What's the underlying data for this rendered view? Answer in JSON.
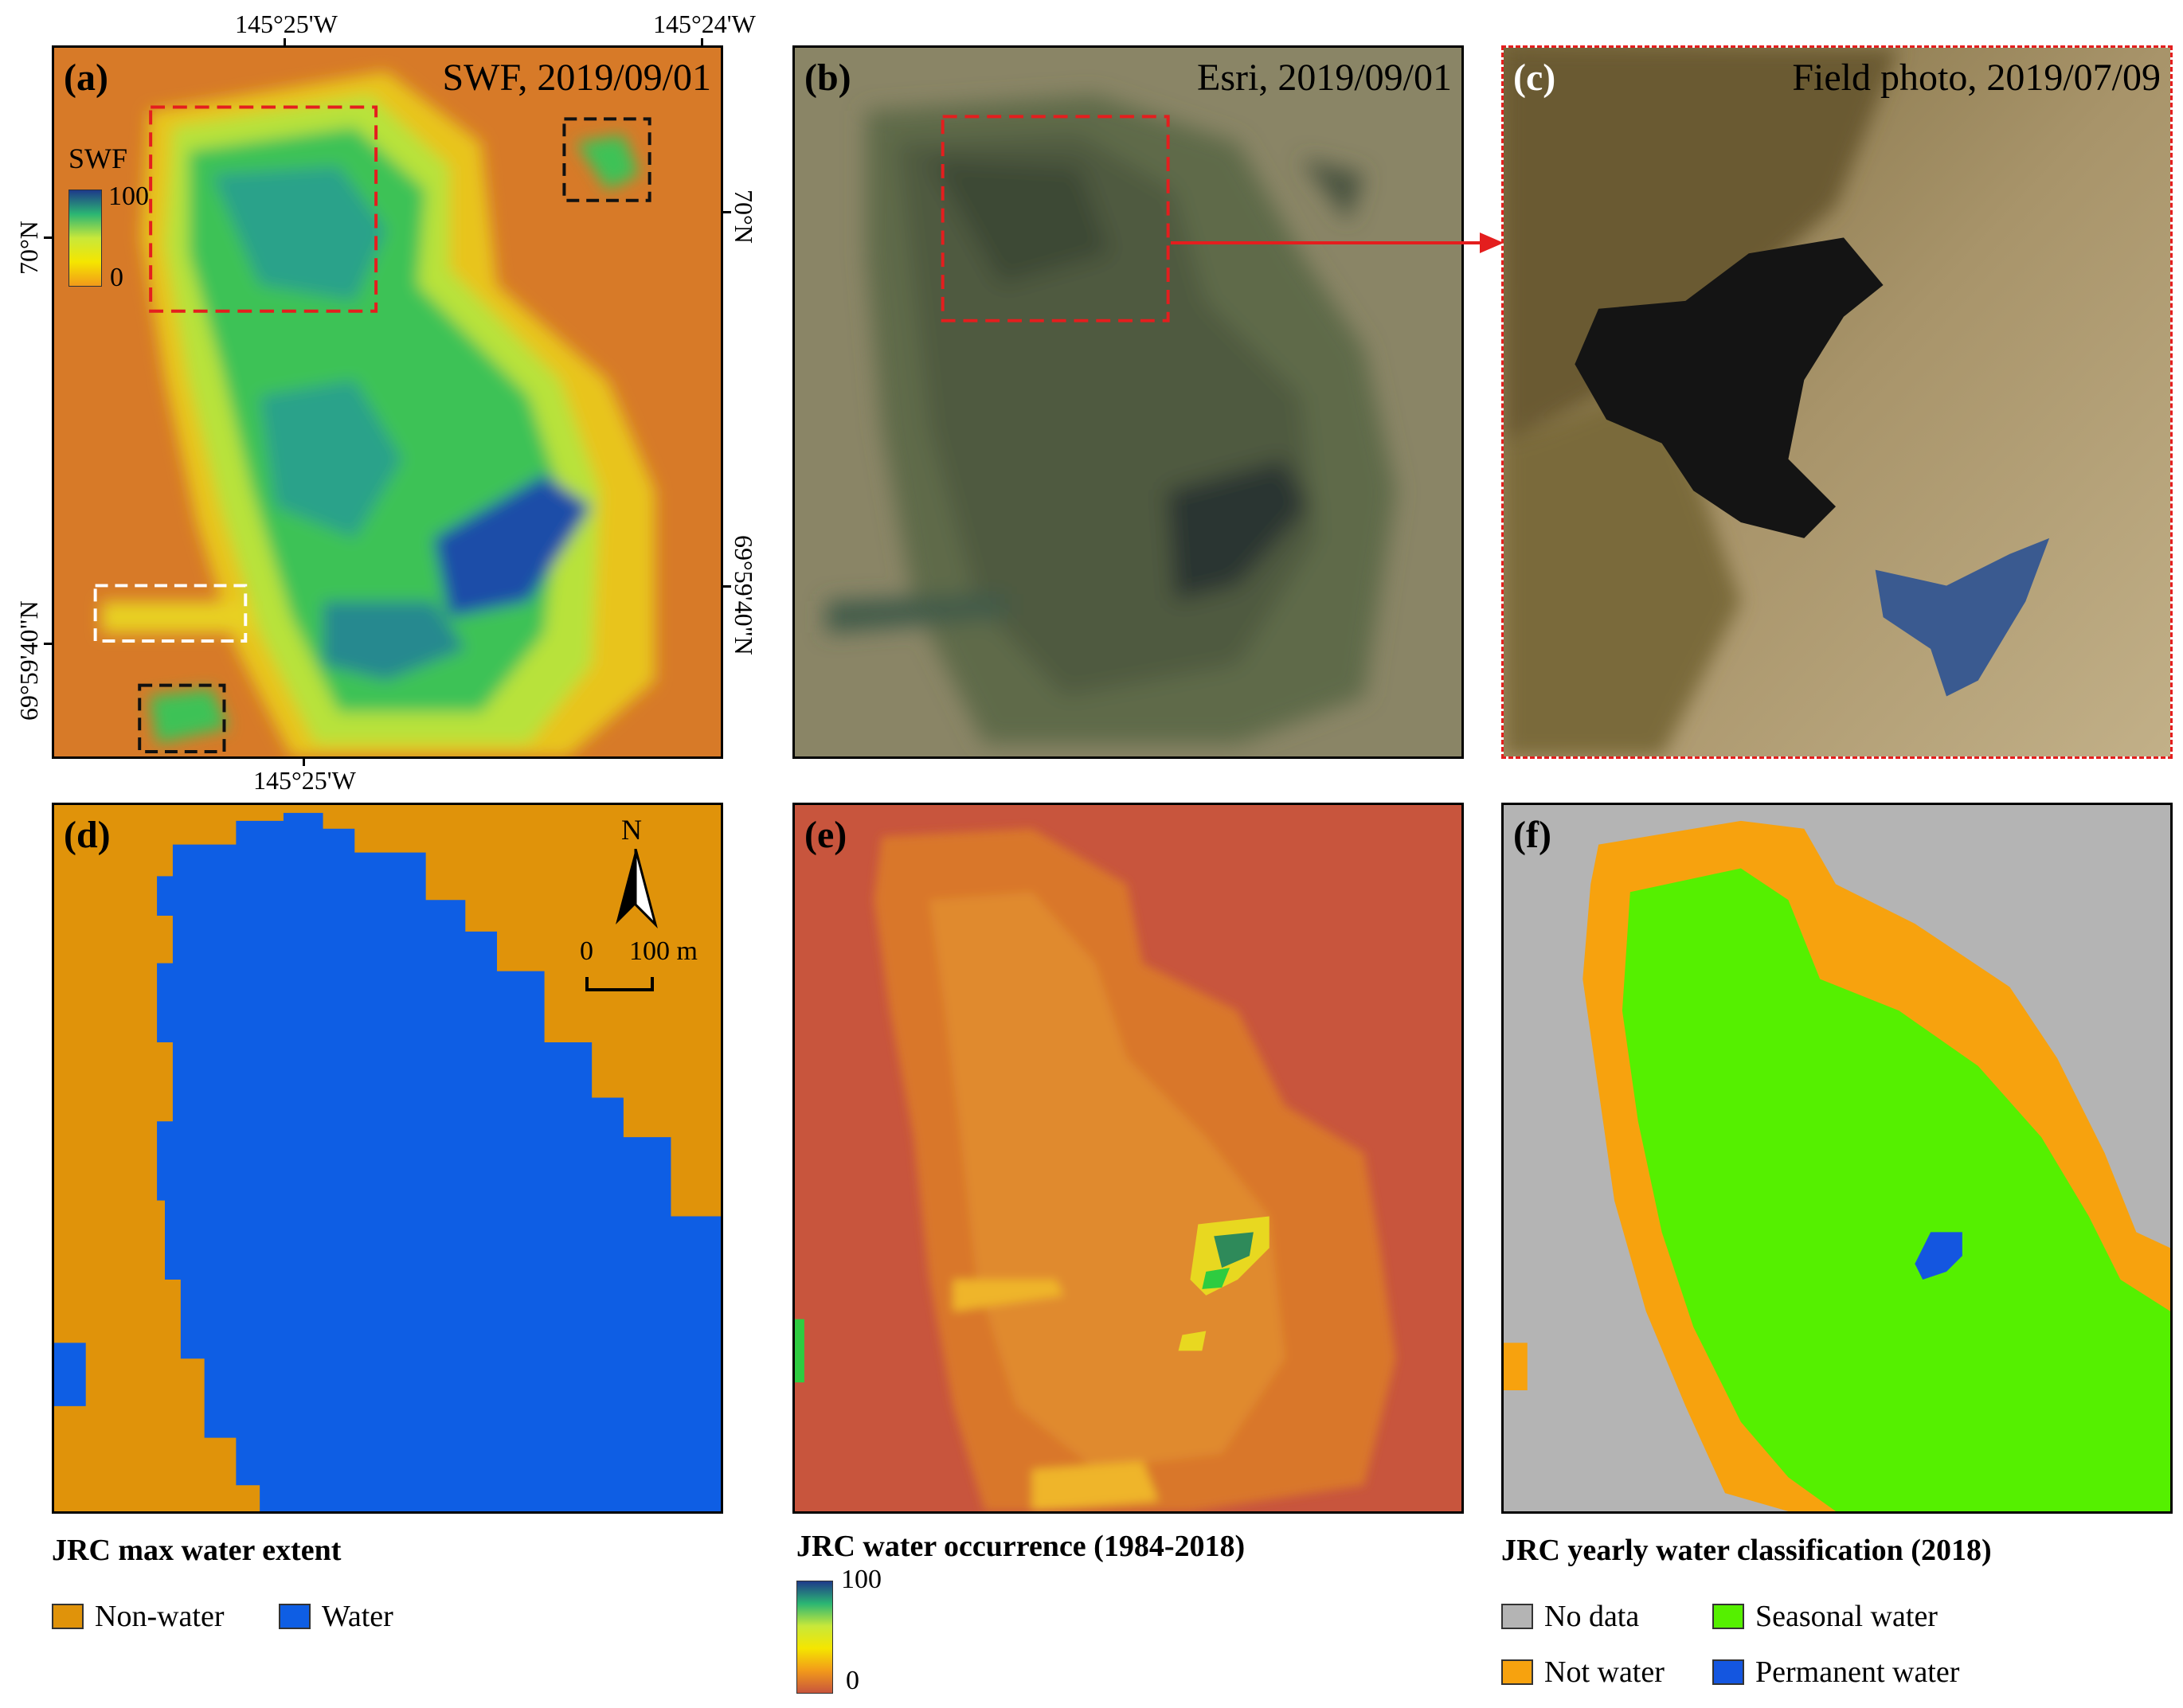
{
  "coords": {
    "top_left": "145°25'W",
    "top_right": "145°24'W",
    "bottom": "145°25'W",
    "left_upper": "70°N",
    "left_lower": "69°59'40\"N",
    "right_upper": "70°N",
    "right_lower": "69°59'40\"N"
  },
  "panels": {
    "a": {
      "label": "(a)",
      "title": "SWF, 2019/09/01",
      "cbar_title": "SWF",
      "cbar_max": "100",
      "cbar_min": "0"
    },
    "b": {
      "label": "(b)",
      "title": "Esri, 2019/09/01"
    },
    "c": {
      "label": "(c)",
      "title": "Field photo, 2019/07/09"
    },
    "d": {
      "label": "(d)",
      "north": "N",
      "scale_0": "0",
      "scale_100": "100 m"
    },
    "e": {
      "label": "(e)"
    },
    "f": {
      "label": "(f)"
    }
  },
  "legends": {
    "d": {
      "title": "JRC max water extent",
      "items": [
        {
          "label": "Non-water",
          "color": "#e0930a"
        },
        {
          "label": "Water",
          "color": "#0e5ee4"
        }
      ]
    },
    "e": {
      "title": "JRC water occurrence (1984-2018)",
      "max": "100",
      "min": "0"
    },
    "f": {
      "title": "JRC yearly water classification (2018)",
      "items": [
        {
          "label": "No data",
          "color": "#b4b4b4"
        },
        {
          "label": "Seasonal water",
          "color": "#55f000"
        },
        {
          "label": "Not water",
          "color": "#f7a20e"
        },
        {
          "label": "Permanent water",
          "color": "#1456e0"
        }
      ]
    }
  },
  "colors": {
    "swf_low": "#d2691e",
    "swf_mid": "#f5e600",
    "swf_green": "#2ecc40",
    "swf_high": "#1e4ea8",
    "esri_ground": "#7d7a5e",
    "jrc_occ_bg": "#c8553d",
    "red_box": "#e41e1e"
  }
}
